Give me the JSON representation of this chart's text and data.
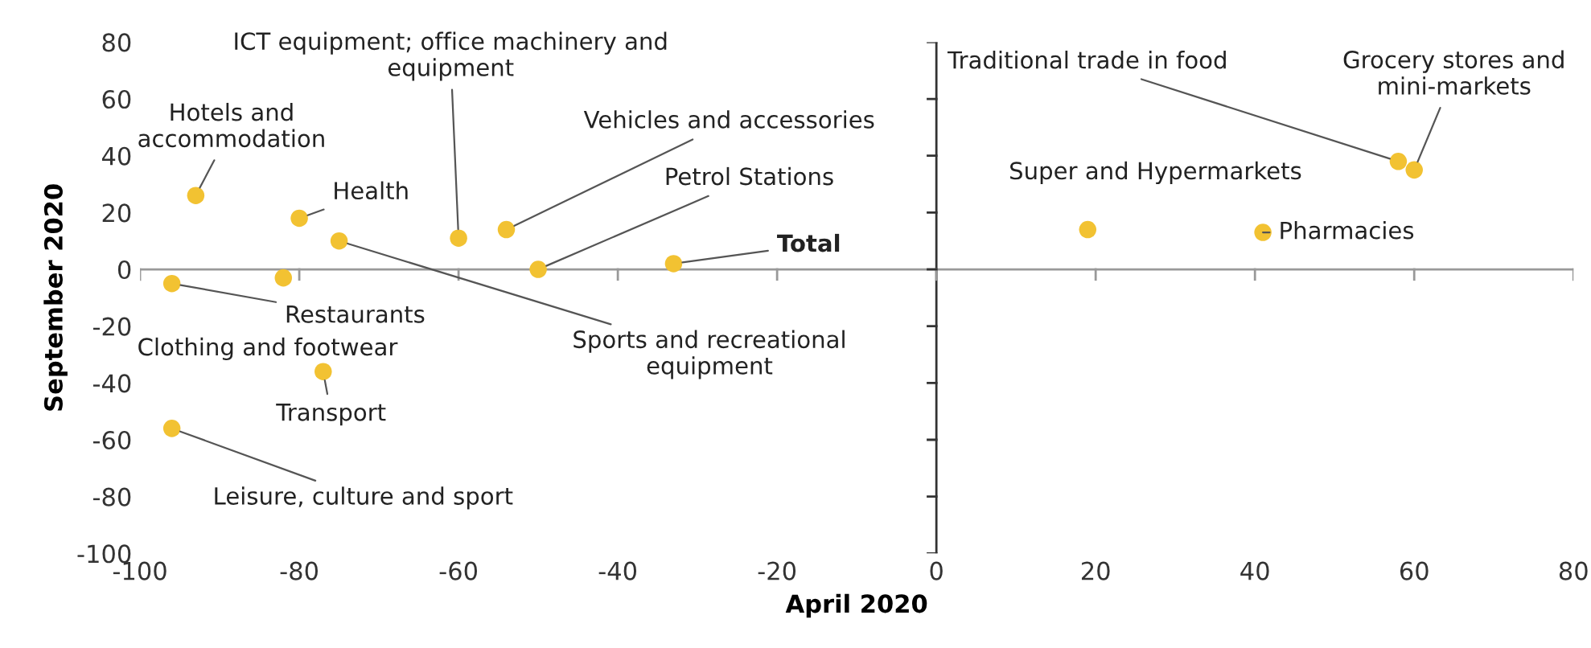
{
  "chart_data": {
    "type": "scatter",
    "xlabel": "April 2020",
    "ylabel": "September 2020",
    "xlim": [
      -100,
      80
    ],
    "ylim": [
      -100,
      80
    ],
    "xticks": [
      -100,
      -80,
      -60,
      -40,
      -20,
      0,
      20,
      40,
      60,
      80
    ],
    "yticks": [
      -100,
      -80,
      -60,
      -40,
      -20,
      0,
      20,
      40,
      60,
      80
    ],
    "grid": false,
    "marker": "circle",
    "series": [
      {
        "color": "#f2c232",
        "x": [
          -93,
          -80,
          -75,
          -60,
          -54,
          -50,
          -33,
          -96,
          -82,
          -77,
          -96,
          19,
          41,
          58,
          60
        ],
        "values": [
          26,
          18,
          10,
          11,
          14,
          0,
          2,
          -5,
          -3,
          -36,
          -56,
          14,
          13,
          38,
          35
        ]
      }
    ],
    "annotations": [
      {
        "text": "Hotels and\naccommodation",
        "x": -93,
        "y": 26
      },
      {
        "text": "Health",
        "x": -80,
        "y": 18
      },
      {
        "text": "Sports and recreational\nequipment",
        "x": -75,
        "y": 10
      },
      {
        "text": "ICT equipment; office machinery and\nequipment",
        "x": -60,
        "y": 11
      },
      {
        "text": "Vehicles and accessories",
        "x": -54,
        "y": 14
      },
      {
        "text": "Petrol Stations",
        "x": -50,
        "y": 0
      },
      {
        "text": "Total",
        "x": -33,
        "y": 2
      },
      {
        "text": "Restaurants",
        "x": -96,
        "y": -5
      },
      {
        "text": "Clothing and footwear",
        "x": -82,
        "y": -3
      },
      {
        "text": "Transport",
        "x": -77,
        "y": -36
      },
      {
        "text": "Leisure, culture and sport",
        "x": -96,
        "y": -56
      },
      {
        "text": "Super and Hypermarkets",
        "x": 19,
        "y": 14
      },
      {
        "text": "Pharmacies",
        "x": 41,
        "y": 13
      },
      {
        "text": "Traditional trade in food",
        "x": 58,
        "y": 38
      },
      {
        "text": "Grocery stores and\nmini-markets",
        "x": 60,
        "y": 35
      }
    ]
  }
}
